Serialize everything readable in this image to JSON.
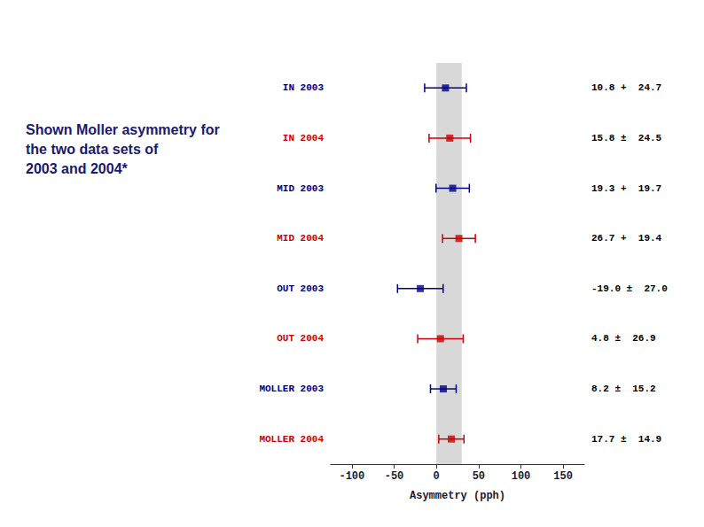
{
  "chart_data": {
    "type": "errorbar",
    "title": "Shown Moller asymmetry for\nthe two data sets of\n2003 and 2004*",
    "xlabel": "Asymmetry (pph)",
    "categories": [
      "IN 2003",
      "IN 2004",
      "MID 2003",
      "MID 2004",
      "OUT 2003",
      "OUT 2004",
      "MOLLER 2003",
      "MOLLER 2004"
    ],
    "values": [
      10.8,
      15.8,
      19.3,
      26.7,
      -19.0,
      4.8,
      8.2,
      17.7
    ],
    "errors": [
      24.7,
      24.5,
      19.7,
      19.4,
      27.0,
      26.9,
      15.2,
      14.9
    ],
    "value_labels": [
      "10.8 +  24.7",
      "15.8 ±  24.5",
      "19.3 +  19.7",
      "26.7 +  19.4",
      "-19.0 ±  27.0",
      "4.8 ±  26.9",
      "8.2 ±  15.2",
      "17.7 ±  14.9"
    ],
    "colors": [
      "#00008b",
      "#cc0000",
      "#00008b",
      "#cc0000",
      "#00008b",
      "#cc0000",
      "#00008b",
      "#cc0000"
    ],
    "marker": "square",
    "band": [
      0,
      30
    ],
    "xlim": [
      -125,
      175
    ],
    "xticks": [
      -100,
      -50,
      0,
      50,
      100,
      150
    ],
    "grid": false,
    "legend": false
  }
}
